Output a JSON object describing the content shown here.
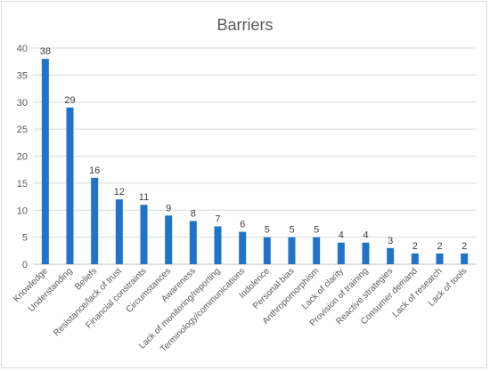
{
  "chart_data": {
    "type": "bar",
    "title": "Barriers",
    "xlabel": "",
    "ylabel": "",
    "ylim": [
      0,
      40
    ],
    "yticks": [
      0,
      5,
      10,
      15,
      20,
      25,
      30,
      35,
      40
    ],
    "grid": true,
    "legend": "none",
    "bar_color": "#1f73c8",
    "categories": [
      "Knowledge",
      "Understanding",
      "Beliefs",
      "Resistance/lack of trust",
      "Financial constraints",
      "Circumstances",
      "Awareness",
      "Lack of monitoring/reporting",
      "Terminology/communications",
      "Indolence",
      "Personal bias",
      "Anthropomorphism",
      "Lack of clarity",
      "Provision of training",
      "Reactive strategies",
      "Consumer demand",
      "Lack of research",
      "Lack of tools"
    ],
    "values": [
      38,
      29,
      16,
      12,
      11,
      9,
      8,
      7,
      6,
      5,
      5,
      5,
      4,
      4,
      3,
      2,
      2,
      2
    ]
  }
}
